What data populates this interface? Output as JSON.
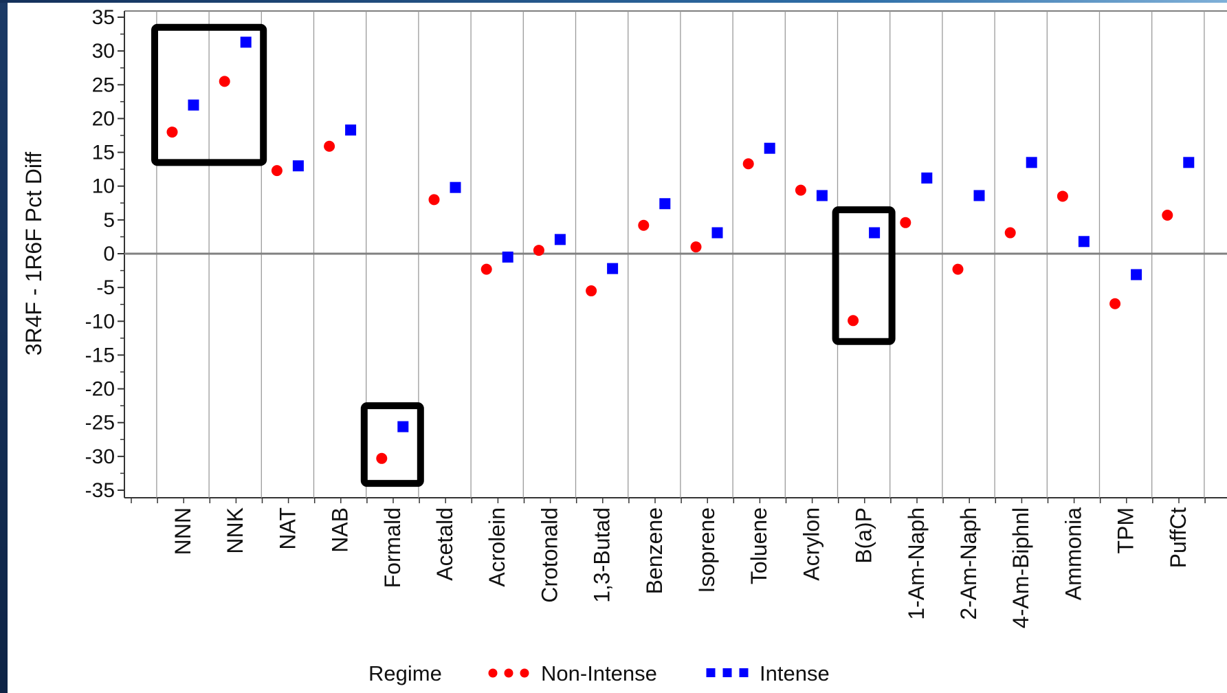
{
  "chart_data": {
    "type": "scatter",
    "ylabel": "3R4F - 1R6F Pct Diff",
    "xlabel": "",
    "ylim": [
      -35,
      35
    ],
    "yticks": [
      35,
      30,
      25,
      20,
      15,
      10,
      5,
      0,
      -5,
      -10,
      -15,
      -20,
      -25,
      -30,
      -35
    ],
    "grid": "vertical category separators",
    "zero_line": true,
    "categories": [
      "NNN",
      "NNK",
      "NAT",
      "NAB",
      "Formald",
      "Acetald",
      "Acrolein",
      "Crotonald",
      "1,3-Butad",
      "Benzene",
      "Isoprene",
      "Toluene",
      "Acrylon",
      "B(a)P",
      "1-Am-Naph",
      "2-Am-Naph",
      "4-Am-Biphnl",
      "Ammonia",
      "TPM",
      "PuffCt"
    ],
    "series": [
      {
        "name": "Non-Intense",
        "marker": "circle",
        "color": "#ff0000",
        "values": [
          18,
          25.5,
          12.3,
          15.9,
          -30.3,
          8,
          -2.3,
          0.5,
          -5.5,
          4.2,
          1,
          13.3,
          9.4,
          -9.9,
          4.6,
          -2.3,
          3.1,
          8.5,
          -7.4,
          5.7
        ]
      },
      {
        "name": "Intense",
        "marker": "square",
        "color": "#0000ff",
        "values": [
          22,
          31.3,
          13,
          18.3,
          -25.6,
          9.8,
          -0.5,
          2.1,
          -2.2,
          7.4,
          3.1,
          15.6,
          8.6,
          3.1,
          11.2,
          8.6,
          13.5,
          1.8,
          -3.1,
          13.5
        ]
      }
    ],
    "highlight_boxes": [
      {
        "from_category": "NNN",
        "to_category": "NNK",
        "y_range": [
          13.5,
          33.5
        ]
      },
      {
        "from_category": "Formald",
        "to_category": "Formald",
        "y_range": [
          -34,
          -22.5
        ]
      },
      {
        "from_category": "B(a)P",
        "to_category": "B(a)P",
        "y_range": [
          -13,
          6.5
        ]
      }
    ],
    "legend": {
      "title": "Regime",
      "placement": "bottom",
      "items": [
        "Non-Intense",
        "Intense"
      ]
    }
  }
}
